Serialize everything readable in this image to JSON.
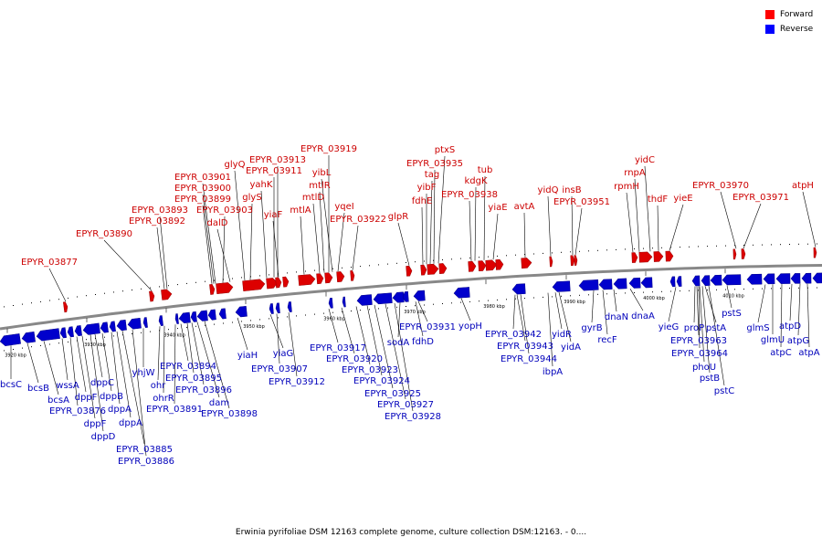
{
  "legend": {
    "items": [
      {
        "label": "Forward",
        "color": "#ff0000"
      },
      {
        "label": "Reverse",
        "color": "#0000ff"
      }
    ]
  },
  "caption": "Erwinia pyrifoliae DSM 12163 complete genome, culture collection DSM:12163. - 0....",
  "colors": {
    "forward": "#dd0000",
    "reverse": "#0000cc",
    "label_forward": "#cc0000",
    "label_reverse": "#0000bb",
    "axis": "#888888"
  },
  "genes_forward": [
    "EPYR_03877",
    "EPYR_03890",
    "EPYR_03892",
    "EPYR_03893",
    "EPYR_03899",
    "EPYR_03900",
    "EPYR_03901",
    "EPYR_03903",
    "dalD",
    "glyQ",
    "glyS",
    "yahK",
    "EPYR_03911",
    "EPYR_03913",
    "yiaF",
    "mtlA",
    "mtlD",
    "mtlR",
    "EPYR_03919",
    "yibL",
    "yqeI",
    "EPYR_03922",
    "glpR",
    "fdhE",
    "yibF",
    "tag",
    "EPYR_03935",
    "ptxS",
    "EPYR_03938",
    "kdgK",
    "tub",
    "yiaE",
    "avtA",
    "yidQ",
    "insB",
    "EPYR_03951",
    "rpmH",
    "rnpA",
    "yidC",
    "thdF",
    "yieE",
    "EPYR_03970",
    "EPYR_03971",
    "atpH"
  ],
  "genes_reverse": [
    "bcsC",
    "bcsB",
    "bcsA",
    "wssA",
    "EPYR_03876",
    "dppF",
    "dppF",
    "dppD",
    "dppC",
    "dppB",
    "dppA",
    "dppA",
    "EPYR_03885",
    "EPYR_03886",
    "yhjW",
    "ohr",
    "ohrR",
    "EPYR_03891",
    "EPYR_03894",
    "EPYR_03895",
    "EPYR_03896",
    "dam",
    "EPYR_03898",
    "yiaH",
    "yiaG",
    "EPYR_03907",
    "EPYR_03912",
    "EPYR_03917",
    "EPYR_03920",
    "EPYR_03923",
    "EPYR_03924",
    "EPYR_03925",
    "EPYR_03927",
    "EPYR_03928",
    "sodA",
    "fdhD",
    "EPYR_03931",
    "yopH",
    "EPYR_03942",
    "EPYR_03943",
    "EPYR_03944",
    "ibpA",
    "yidR",
    "yidA",
    "gyrB",
    "recF",
    "dnaN",
    "dnaA",
    "yieG",
    "proP",
    "EPYR_03963",
    "EPYR_03964",
    "phoU",
    "pstB",
    "pstA",
    "pstC",
    "pstS",
    "glmS",
    "glmU",
    "atpC",
    "atpD",
    "atpG",
    "atpA"
  ],
  "scale_labels": [
    "3920 kbp",
    "3930 kbp",
    "3940 kbp",
    "3950 kbp",
    "3960 kbp",
    "3970 kbp",
    "3980 kbp",
    "3990 kbp",
    "4000 kbp",
    "4010 kbp"
  ]
}
